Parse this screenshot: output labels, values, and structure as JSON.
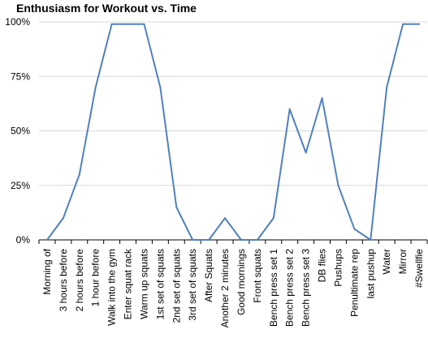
{
  "chart_data": {
    "type": "line",
    "title": "Enthusiasm for Workout vs. Time",
    "xlabel": "",
    "ylabel": "",
    "ylim": [
      0,
      100
    ],
    "yticks": [
      "0%",
      "25%",
      "50%",
      "75%",
      "100%"
    ],
    "grid": true,
    "legend": "none",
    "categories": [
      "Morning of",
      "3 hours before",
      "2 hours before",
      "1 hour before",
      "Walk into the gym",
      "Enter squat rack",
      "Warm up squats",
      "1st set of squats",
      "2nd set of squats",
      "3rd set of squats",
      "After Squats",
      "Another 2 minutes",
      "Good mornings",
      "Front squats",
      "Bench press set 1",
      "Bench press set 2",
      "Bench press set 3",
      "DB flies",
      "Pushups",
      "Penultimate rep",
      "last pushup",
      "Water",
      "Mirror",
      "#Swellfie"
    ],
    "series": [
      {
        "values": [
          0,
          10,
          30,
          70,
          99,
          99,
          99,
          70,
          15,
          0,
          0,
          10,
          0,
          0,
          10,
          60,
          40,
          65,
          25,
          5,
          0,
          70,
          99,
          99
        ]
      }
    ],
    "colors": {
      "line": "#4F81BD",
      "grid": "#D9D9D9",
      "axis": "#000000"
    }
  }
}
